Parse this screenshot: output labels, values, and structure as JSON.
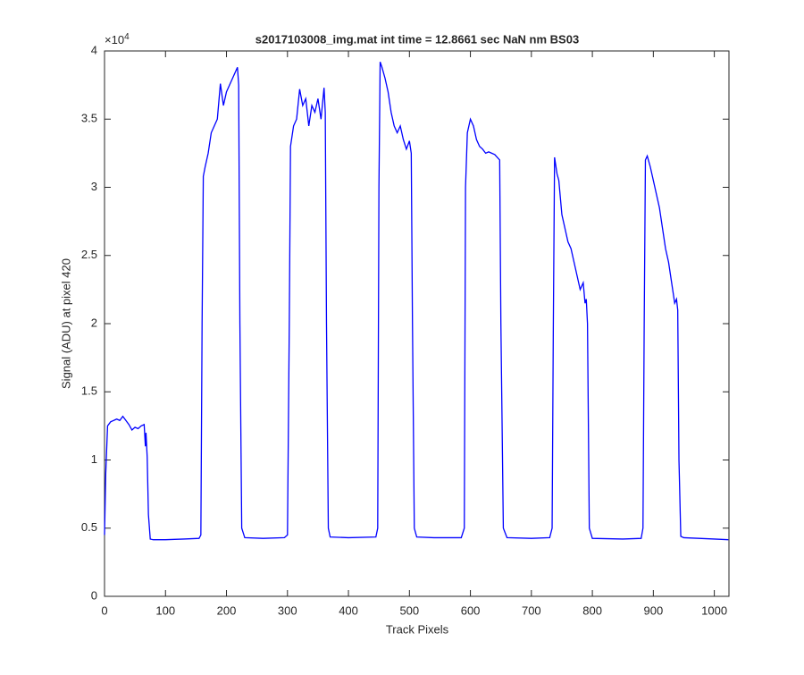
{
  "chart_data": {
    "type": "line",
    "title": "s2017103008_img.mat int time = 12.8661 sec  NaN nm BS03",
    "x_label": "Track Pixels",
    "y_label": "Signal (ADU) at pixel 420",
    "y_scale_label": {
      "base": "×10",
      "exponent": "4"
    },
    "color": "#0000ff",
    "x": [
      0,
      2,
      5,
      10,
      20,
      25,
      30,
      35,
      40,
      45,
      50,
      55,
      60,
      65,
      67,
      68,
      70,
      72,
      75,
      80,
      100,
      130,
      155,
      158,
      160,
      162,
      165,
      170,
      175,
      180,
      185,
      190,
      195,
      200,
      205,
      210,
      215,
      218,
      220,
      222,
      225,
      230,
      260,
      295,
      300,
      303,
      305,
      310,
      315,
      320,
      325,
      330,
      335,
      340,
      345,
      350,
      355,
      360,
      362,
      364,
      367,
      370,
      400,
      445,
      448,
      450,
      452,
      455,
      460,
      465,
      470,
      475,
      480,
      485,
      490,
      495,
      500,
      503,
      505,
      508,
      512,
      540,
      585,
      590,
      592,
      595,
      600,
      605,
      610,
      615,
      620,
      625,
      630,
      640,
      648,
      650,
      654,
      660,
      700,
      730,
      734,
      736,
      738,
      742,
      745,
      750,
      755,
      760,
      765,
      770,
      775,
      780,
      785,
      788,
      790,
      792,
      795,
      800,
      850,
      880,
      883,
      885,
      887,
      890,
      895,
      900,
      905,
      910,
      915,
      920,
      925,
      930,
      935,
      938,
      940,
      942,
      945,
      950,
      1000,
      1023
    ],
    "values": [
      4500,
      9000,
      12500,
      12800,
      13000,
      12900,
      13200,
      12900,
      12600,
      12200,
      12400,
      12300,
      12500,
      12600,
      11000,
      12000,
      10200,
      6000,
      4200,
      4150,
      4150,
      4200,
      4250,
      4500,
      20000,
      30800,
      31500,
      32500,
      34000,
      34500,
      35000,
      37600,
      36000,
      37000,
      37500,
      38000,
      38500,
      38800,
      37500,
      20000,
      5000,
      4300,
      4250,
      4300,
      4500,
      20000,
      33000,
      34500,
      35000,
      37200,
      36000,
      36500,
      34500,
      36000,
      35500,
      36500,
      35000,
      37300,
      35500,
      20000,
      5000,
      4350,
      4300,
      4350,
      5000,
      30000,
      39200,
      38800,
      38000,
      37000,
      35500,
      34500,
      34000,
      34500,
      33500,
      32800,
      33400,
      32500,
      20000,
      5000,
      4350,
      4300,
      4300,
      5000,
      30000,
      34000,
      35000,
      34500,
      33500,
      33000,
      32800,
      32500,
      32600,
      32400,
      32000,
      20000,
      5000,
      4300,
      4250,
      4300,
      5000,
      20000,
      32200,
      31000,
      30500,
      28000,
      27000,
      26000,
      25500,
      24500,
      23500,
      22500,
      23000,
      21500,
      21800,
      20000,
      5000,
      4250,
      4200,
      4250,
      5000,
      20000,
      32000,
      32300,
      31500,
      30500,
      29500,
      28500,
      27000,
      25500,
      24500,
      23000,
      21500,
      21800,
      21000,
      10000,
      4400,
      4300,
      4200,
      4150
    ],
    "xlim": [
      0,
      1024
    ],
    "ylim": [
      0,
      40000
    ],
    "xticks": [
      0,
      100,
      200,
      300,
      400,
      500,
      600,
      700,
      800,
      900,
      1000
    ],
    "yticks": [
      0,
      {
        "value": 5000,
        "label": "0.5"
      },
      {
        "value": 10000,
        "label": "1"
      },
      {
        "value": 15000,
        "label": "1.5"
      },
      {
        "value": 20000,
        "label": "2"
      },
      {
        "value": 25000,
        "label": "2.5"
      },
      {
        "value": 30000,
        "label": "3"
      },
      {
        "value": 35000,
        "label": "3.5"
      },
      {
        "value": 40000,
        "label": "4"
      }
    ],
    "grid": false
  }
}
